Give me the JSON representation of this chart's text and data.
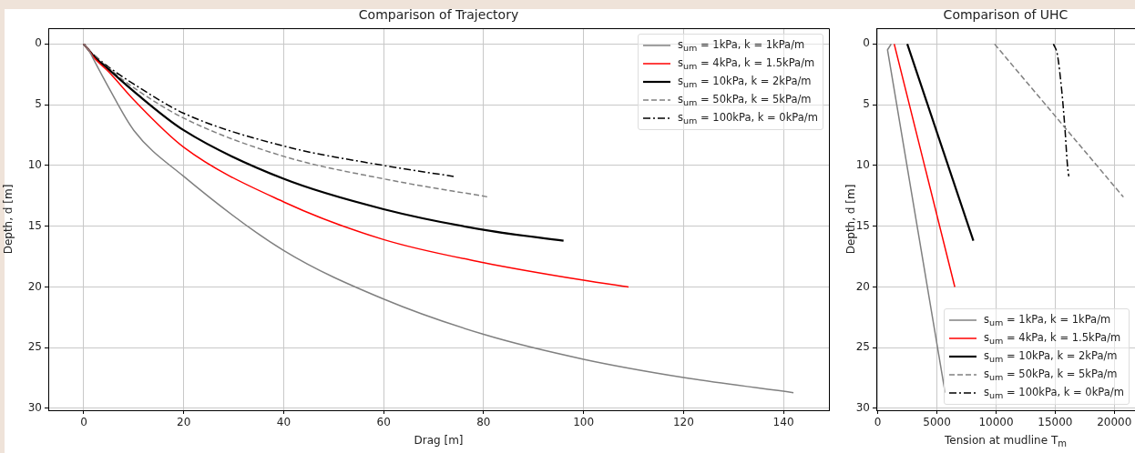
{
  "chart_data": [
    {
      "type": "line",
      "title": "Comparison of Trajectory",
      "xlabel": "Drag [m]",
      "ylabel": "Depth, d [m]",
      "xlim": [
        -7.1,
        149.1
      ],
      "xticks": [
        0,
        20,
        40,
        60,
        80,
        100,
        120,
        140
      ],
      "ylim": [
        30.15,
        -1.3
      ],
      "yticks": [
        0,
        5,
        10,
        15,
        20,
        25,
        30
      ],
      "grid": true,
      "legend": "top right",
      "series": [
        {
          "name": "s$_{um}$ = 1kPa, k = 1kPa/m",
          "color": "#808080",
          "line_style": "solid",
          "x": [
            0,
            1,
            2,
            5,
            10,
            20,
            40,
            60,
            80,
            100,
            120,
            142
          ],
          "values": [
            0,
            0.5,
            1.3,
            3.6,
            7.1,
            10.9,
            17.0,
            21.0,
            23.9,
            25.95,
            27.45,
            28.7
          ]
        },
        {
          "name": "s$_{um}$ = 4kPa, k = 1.5kPa/m",
          "color": "#ff0000",
          "line_style": "solid",
          "x": [
            0,
            1,
            2,
            5,
            10,
            20,
            40,
            60,
            80,
            100,
            109
          ],
          "values": [
            0,
            0.5,
            1.1,
            2.3,
            4.6,
            8.5,
            13.0,
            16.1,
            18.0,
            19.45,
            20.0
          ]
        },
        {
          "name": "s$_{um}$ = 10kPa, k = 2kPa/m",
          "color": "#000000",
          "line_style": "solid",
          "x": [
            0,
            1,
            2,
            5,
            10,
            20,
            40,
            60,
            80,
            96
          ],
          "values": [
            0,
            0.5,
            1.0,
            2.1,
            3.9,
            7.1,
            11.1,
            13.6,
            15.3,
            16.2
          ]
        },
        {
          "name": "s$_{um}$ = 50kPa, k = 5kPa/m",
          "color": "#808080",
          "line_style": "dashed",
          "x": [
            0,
            1,
            2,
            5,
            10,
            20,
            40,
            60,
            81
          ],
          "values": [
            0,
            0.5,
            0.9,
            2.0,
            3.6,
            6.1,
            9.25,
            11.1,
            12.6
          ]
        },
        {
          "name": "s$_{um}$ = 100kPa, k = 0kPa/m",
          "color": "#000000",
          "line_style": "dashdot",
          "x": [
            0,
            1,
            2,
            5,
            10,
            20,
            40,
            60,
            74
          ],
          "values": [
            0,
            0.5,
            0.9,
            1.9,
            3.3,
            5.7,
            8.4,
            10.0,
            10.9
          ]
        }
      ]
    },
    {
      "type": "line",
      "title": "Comparison of UHC",
      "xlabel": "Tension at mudline T$_{m}$",
      "ylabel": "Depth, d [m]",
      "xlim": [
        -130,
        21750
      ],
      "xticks": [
        0,
        5000,
        10000,
        15000,
        20000
      ],
      "ylim": [
        30.15,
        -1.3
      ],
      "yticks": [
        0,
        5,
        10,
        15,
        20,
        25,
        30
      ],
      "grid": true,
      "legend": "bottom right",
      "series": [
        {
          "name": "s$_{um}$ = 1kPa, k = 1kPa/m",
          "color": "#808080",
          "line_style": "solid",
          "x": [
            1130,
            820,
            5690
          ],
          "values": [
            0,
            0.48,
            28.7
          ]
        },
        {
          "name": "s$_{um}$ = 4kPa, k = 1.5kPa/m",
          "color": "#ff0000",
          "line_style": "solid",
          "x": [
            1385,
            6510
          ],
          "values": [
            0,
            20.0
          ]
        },
        {
          "name": "s$_{um}$ = 10kPa, k = 2kPa/m",
          "color": "#000000",
          "line_style": "solid",
          "x": [
            2490,
            8080
          ],
          "values": [
            0,
            16.2
          ]
        },
        {
          "name": "s$_{um}$ = 50kPa, k = 5kPa/m",
          "color": "#808080",
          "line_style": "dashed",
          "x": [
            9870,
            20770
          ],
          "values": [
            0,
            12.6
          ]
        },
        {
          "name": "s$_{um}$ = 100kPa, k = 0kPa/m",
          "color": "#000000",
          "line_style": "dashdot",
          "x": [
            14850,
            15180,
            15560,
            15820,
            16030,
            16150
          ],
          "values": [
            0,
            0.85,
            3.9,
            6.9,
            9.9,
            10.9
          ]
        }
      ]
    }
  ]
}
